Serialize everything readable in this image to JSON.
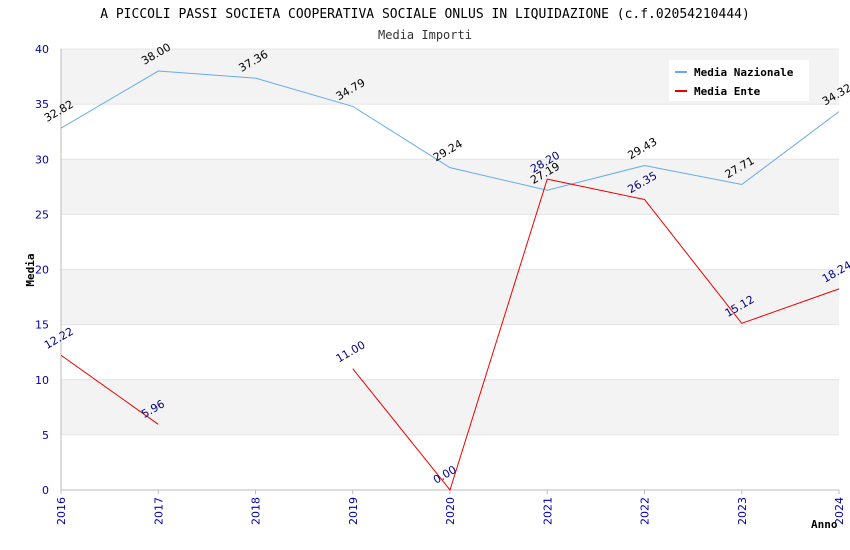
{
  "chart_data": {
    "type": "line",
    "title": "A PICCOLI PASSI SOCIETA COOPERATIVA SOCIALE ONLUS IN LIQUIDAZIONE (c.f.02054210444)",
    "subtitle": "Media Importi",
    "xlabel": "Anno",
    "ylabel": "Media",
    "ylim": [
      0,
      40
    ],
    "yticks": [
      "0",
      "5",
      "10",
      "15",
      "20",
      "25",
      "30",
      "35",
      "40"
    ],
    "x": [
      "2016",
      "2017",
      "2018",
      "2019",
      "2020",
      "2021",
      "2022",
      "2023",
      "2024"
    ],
    "grid": true,
    "legend_position": "top-right",
    "series": [
      {
        "name": "Media Nazionale",
        "color": "#66aaee",
        "label_color": "#000000",
        "values": [
          32.82,
          38.0,
          37.36,
          34.79,
          29.24,
          27.19,
          29.43,
          27.71,
          34.32
        ],
        "labels": [
          "32.82",
          "38.00",
          "37.36",
          "34.79",
          "29.24",
          "27.19",
          "29.43",
          "27.71",
          "34.32"
        ]
      },
      {
        "name": "Media Ente",
        "color": "#ee0000",
        "label_color": "#000080",
        "values": [
          12.22,
          5.96,
          null,
          11.0,
          0.0,
          28.2,
          26.35,
          15.12,
          18.24
        ],
        "labels": [
          "12.22",
          "5.96",
          "",
          "11.00",
          "0.00",
          "28.20",
          "26.35",
          "15.12",
          "18.24"
        ]
      }
    ]
  }
}
